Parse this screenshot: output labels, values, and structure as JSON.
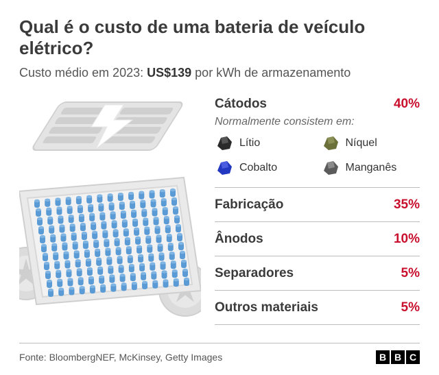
{
  "title": "Qual é o custo de uma bateria de veículo elétrico?",
  "subtitle_prefix": "Custo médio em 2023: ",
  "subtitle_bold": "US$139",
  "subtitle_suffix": " por kWh de armazenamento",
  "accent_color": "#c8102e",
  "divider_color": "#bcbcbc",
  "text_color": "#3b3b3b",
  "breakdown": {
    "items": [
      {
        "label": "Cátodos",
        "value": "40%"
      },
      {
        "label": "Fabricação",
        "value": "35%"
      },
      {
        "label": "Ânodos",
        "value": "10%"
      },
      {
        "label": "Separadores",
        "value": "5%"
      },
      {
        "label": "Outros materiais",
        "value": "5%"
      }
    ],
    "cathode_note": "Normalmente consistem em:",
    "minerals": [
      {
        "name": "Lítio",
        "fill": "#2a2a2a",
        "shade": "#555555"
      },
      {
        "name": "Níquel",
        "fill": "#6b6f3a",
        "shade": "#8a8f55"
      },
      {
        "name": "Cobalto",
        "fill": "#2338c0",
        "shade": "#4a5ce0"
      },
      {
        "name": "Manganês",
        "fill": "#5b5b5b",
        "shade": "#8a8a8a"
      }
    ]
  },
  "illustration": {
    "chassis_color": "#dcdcdc",
    "chassis_stroke": "#bfbfbf",
    "cell_color": "#5a9bd5",
    "cell_color_top": "#7fb4e3",
    "bolt_color": "#ffffff",
    "cells_cols": 14,
    "cells_rows": 11
  },
  "source": "Fonte: BloombergNEF, McKinsey, Getty Images",
  "logo": [
    "B",
    "B",
    "C"
  ]
}
